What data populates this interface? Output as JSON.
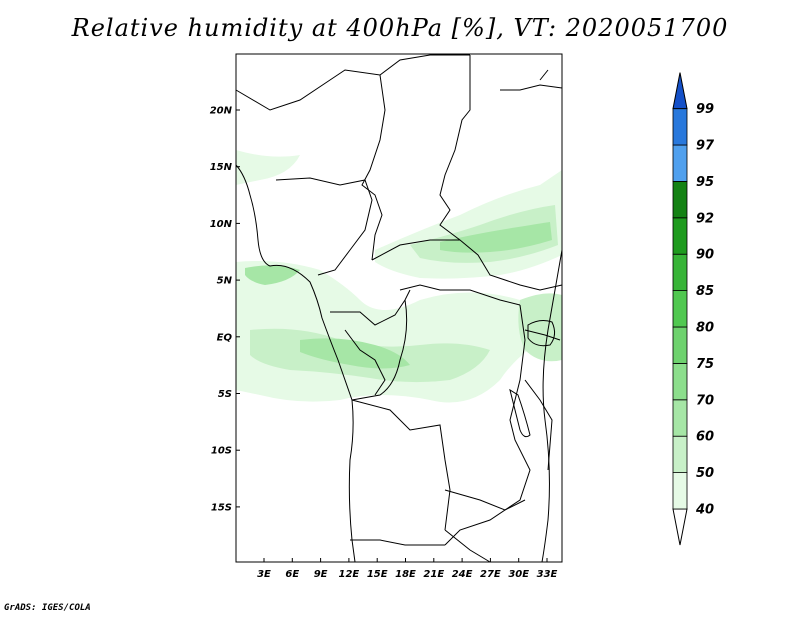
{
  "title": "Relative humidity at 400hPa [%], VT: 2020051700",
  "credit": "GrADS: IGES/COLA",
  "map": {
    "lat_labels": [
      "20N",
      "15N",
      "10N",
      "5N",
      "EQ",
      "5S",
      "10S",
      "15S"
    ],
    "lon_labels": [
      "3E",
      "6E",
      "9E",
      "12E",
      "15E",
      "18E",
      "21E",
      "24E",
      "27E",
      "30E",
      "33E"
    ]
  },
  "colorbar": {
    "labels": [
      "40",
      "50",
      "60",
      "70",
      "75",
      "80",
      "85",
      "90",
      "92",
      "95",
      "97",
      "99"
    ],
    "colors": [
      "#ffffff",
      "#e6fae6",
      "#c8f0c8",
      "#a6e6a6",
      "#8cde8c",
      "#6ed26e",
      "#50c850",
      "#37b437",
      "#1e9b1e",
      "#148214",
      "#50a0ee",
      "#2878dc",
      "#1450c8"
    ]
  }
}
